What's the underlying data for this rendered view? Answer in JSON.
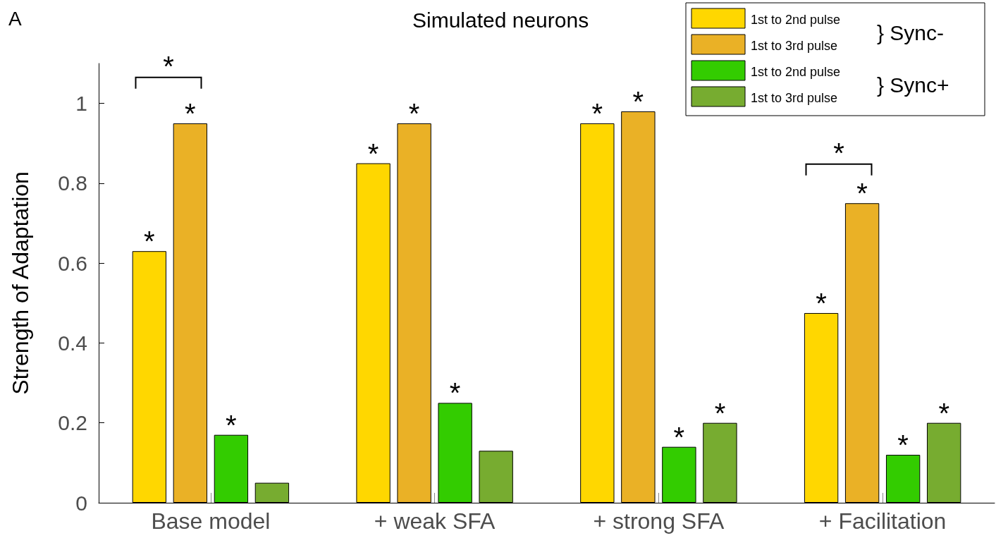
{
  "chart_data": {
    "type": "bar",
    "title": "Simulated neurons",
    "ylabel": "Strength of Adaptation",
    "categories": [
      "Base model",
      "+ weak SFA",
      "+ strong SFA",
      "+ Facilitation"
    ],
    "series": [
      {
        "name": "1st to 2nd pulse",
        "color": "#ffd700",
        "values": [
          0.63,
          0.85,
          0.95,
          0.475
        ],
        "value_labels": [
          "*",
          "*",
          "*",
          "*"
        ]
      },
      {
        "name": "1st to 3rd pulse",
        "color": "#eab126",
        "values": [
          0.95,
          0.95,
          0.98,
          0.75
        ],
        "value_labels": [
          "*",
          "*",
          "*",
          "*"
        ]
      },
      {
        "name": "1st to 2nd pulse",
        "color": "#33cc00",
        "values": [
          0.17,
          0.25,
          0.14,
          0.12
        ],
        "value_labels": [
          "*",
          "*",
          "*",
          "*"
        ]
      },
      {
        "name": "1st to 3rd pulse",
        "color": "#77ac30",
        "values": [
          0.05,
          0.13,
          0.2,
          0.2
        ],
        "value_labels": [
          null,
          null,
          "*",
          "*"
        ]
      }
    ],
    "ylim": [
      0,
      1.1
    ],
    "yticks": [
      0,
      0.2,
      0.4,
      0.6,
      0.8,
      1
    ],
    "grid": false,
    "legend": "top right",
    "annotations": [
      "A",
      "} Sync-",
      "} Sync+",
      "*",
      "*"
    ]
  }
}
